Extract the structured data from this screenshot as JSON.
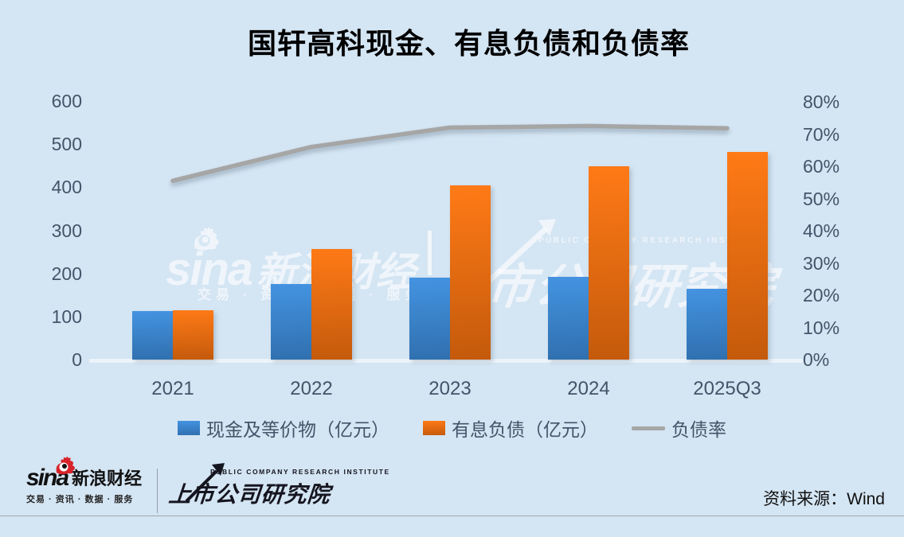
{
  "title": "国轩高科现金、有息负债和负债率",
  "chart_data": {
    "type": "bar+line combo",
    "title": "国轩高科现金、有息负债和负债率",
    "categories": [
      "2021",
      "2022",
      "2023",
      "2024",
      "2025Q3"
    ],
    "series": [
      {
        "name": "现金及等价物（亿元）",
        "type": "bar",
        "axis": "left",
        "values": [
          113,
          175,
          190,
          192,
          164
        ],
        "color_top": "#4493E1",
        "color_bottom": "#3070AF"
      },
      {
        "name": "有息负债（亿元）",
        "type": "bar",
        "axis": "left",
        "values": [
          115,
          257,
          405,
          448,
          481
        ],
        "color_top": "#FF7A16",
        "color_bottom": "#C45A0C"
      },
      {
        "name": "负债率",
        "type": "line",
        "axis": "right",
        "values": [
          55.5,
          66,
          72,
          72.5,
          71.8
        ],
        "color": "#A6A6A6"
      }
    ],
    "left_axis": {
      "min": 0,
      "max": 600,
      "step": 100,
      "ticks": [
        0,
        100,
        200,
        300,
        400,
        500,
        600
      ],
      "suffix": ""
    },
    "right_axis": {
      "min": 0,
      "max": 80,
      "step": 10,
      "ticks": [
        0,
        10,
        20,
        30,
        40,
        50,
        60,
        70,
        80
      ],
      "suffix": "%"
    },
    "grid": false,
    "legend_position": "bottom"
  },
  "watermarks": {
    "sina_word": "sina",
    "brand": "新浪财经",
    "tagline": "交易 · 资讯 · 数据 · 服务",
    "institute_subtitle": "PUBLIC COMPANY RESEARCH INSTITUTE",
    "institute": "市公司研究院"
  },
  "footer": {
    "sina_word": "sina",
    "sina_brand": "新浪财经",
    "sina_tagline": "交易 · 资讯 · 数据 · 服务",
    "institute_subtitle": "PUBLIC COMPANY RESEARCH INSTITUTE",
    "institute_name": "上市公司研究院",
    "source": "资料来源：Wind"
  },
  "colors": {
    "background": "#D4E5F3",
    "axis_text": "#44546A",
    "title_text": "#000000",
    "line_gray": "#A6A6A6",
    "bar_blue_top": "#4493E1",
    "bar_blue_bottom": "#3070AF",
    "bar_orange_top": "#FF7A16",
    "bar_orange_bottom": "#C45A0C",
    "sina_red": "#D8232A"
  }
}
